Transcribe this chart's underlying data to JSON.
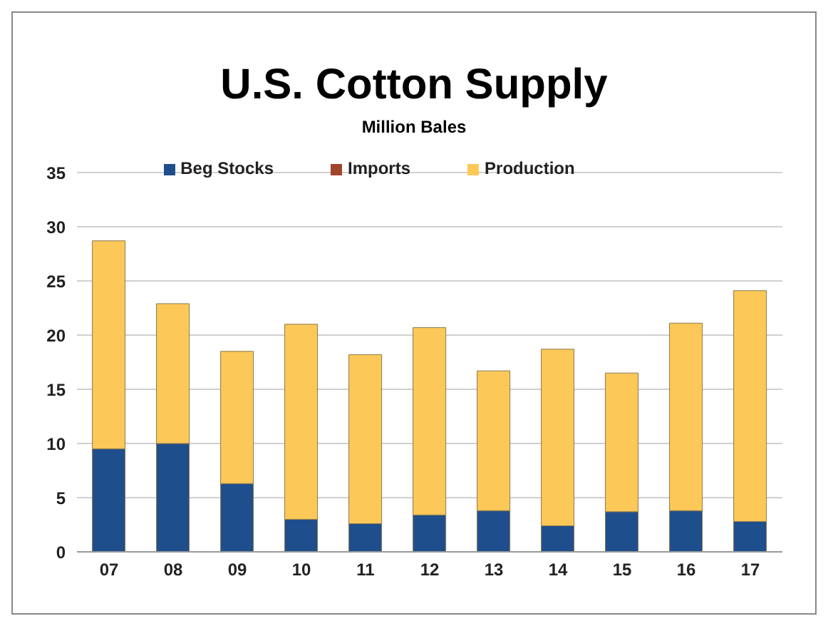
{
  "chart_data": {
    "type": "bar",
    "title": "U.S. Cotton Supply",
    "subtitle": "Million Bales",
    "categories": [
      "07",
      "08",
      "09",
      "10",
      "11",
      "12",
      "13",
      "14",
      "15",
      "16",
      "17"
    ],
    "stacked": true,
    "series": [
      {
        "name": "Beg Stocks",
        "color": "#1f4e8c",
        "values": [
          9.5,
          10.0,
          6.3,
          3.0,
          2.6,
          3.4,
          3.8,
          2.4,
          3.7,
          3.8,
          2.8
        ]
      },
      {
        "name": "Imports",
        "color": "#a0442c",
        "values": [
          0,
          0,
          0,
          0,
          0,
          0,
          0,
          0,
          0,
          0,
          0
        ]
      },
      {
        "name": "Production",
        "color": "#fcc858",
        "values": [
          19.2,
          12.9,
          12.2,
          18.0,
          15.6,
          17.3,
          12.9,
          16.3,
          12.8,
          17.3,
          21.3
        ]
      }
    ],
    "ylim": [
      0,
      35
    ],
    "yticks": [
      0,
      5,
      10,
      15,
      20,
      25,
      30,
      35
    ],
    "grid": "y",
    "legend": "top"
  }
}
